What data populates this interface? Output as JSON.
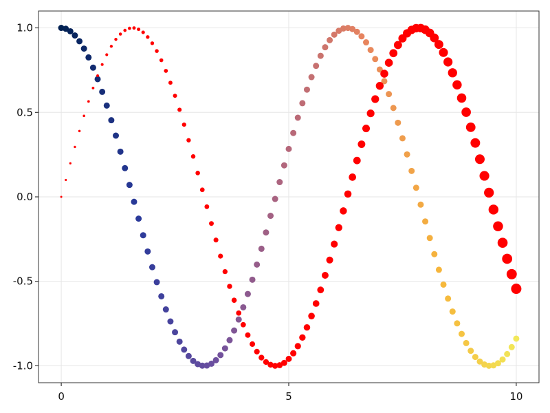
{
  "chart_data": {
    "type": "scatter",
    "title": "",
    "xlabel": "",
    "ylabel": "",
    "xlim": [
      -0.5,
      10.5
    ],
    "ylim": [
      -1.1,
      1.1
    ],
    "grid": true,
    "legend": "none",
    "x_ticks": [
      {
        "value": 0,
        "label": "0"
      },
      {
        "value": 5,
        "label": "5"
      },
      {
        "value": 10,
        "label": "10"
      }
    ],
    "y_ticks": [
      {
        "value": 1.0,
        "label": "1.0"
      },
      {
        "value": 0.5,
        "label": "0.5"
      },
      {
        "value": 0.0,
        "label": "0.0"
      },
      {
        "value": -0.5,
        "label": "-0.5"
      },
      {
        "value": -1.0,
        "label": "-1.0"
      }
    ],
    "series": [
      {
        "function": "cos",
        "x_start": 0,
        "x_end": 10,
        "x_step": 0.1,
        "marker_size": "constant",
        "color_map": "x",
        "colors": [
          "#002051",
          "#2a3a9a",
          "#6b4fa0",
          "#b5677a",
          "#e8845e",
          "#f6b63a",
          "#f2e85a"
        ]
      },
      {
        "function": "sin",
        "x_start": 0,
        "x_end": 10,
        "x_step": 0.1,
        "marker_size": "grows with x",
        "color": "#ff0000"
      }
    ]
  }
}
